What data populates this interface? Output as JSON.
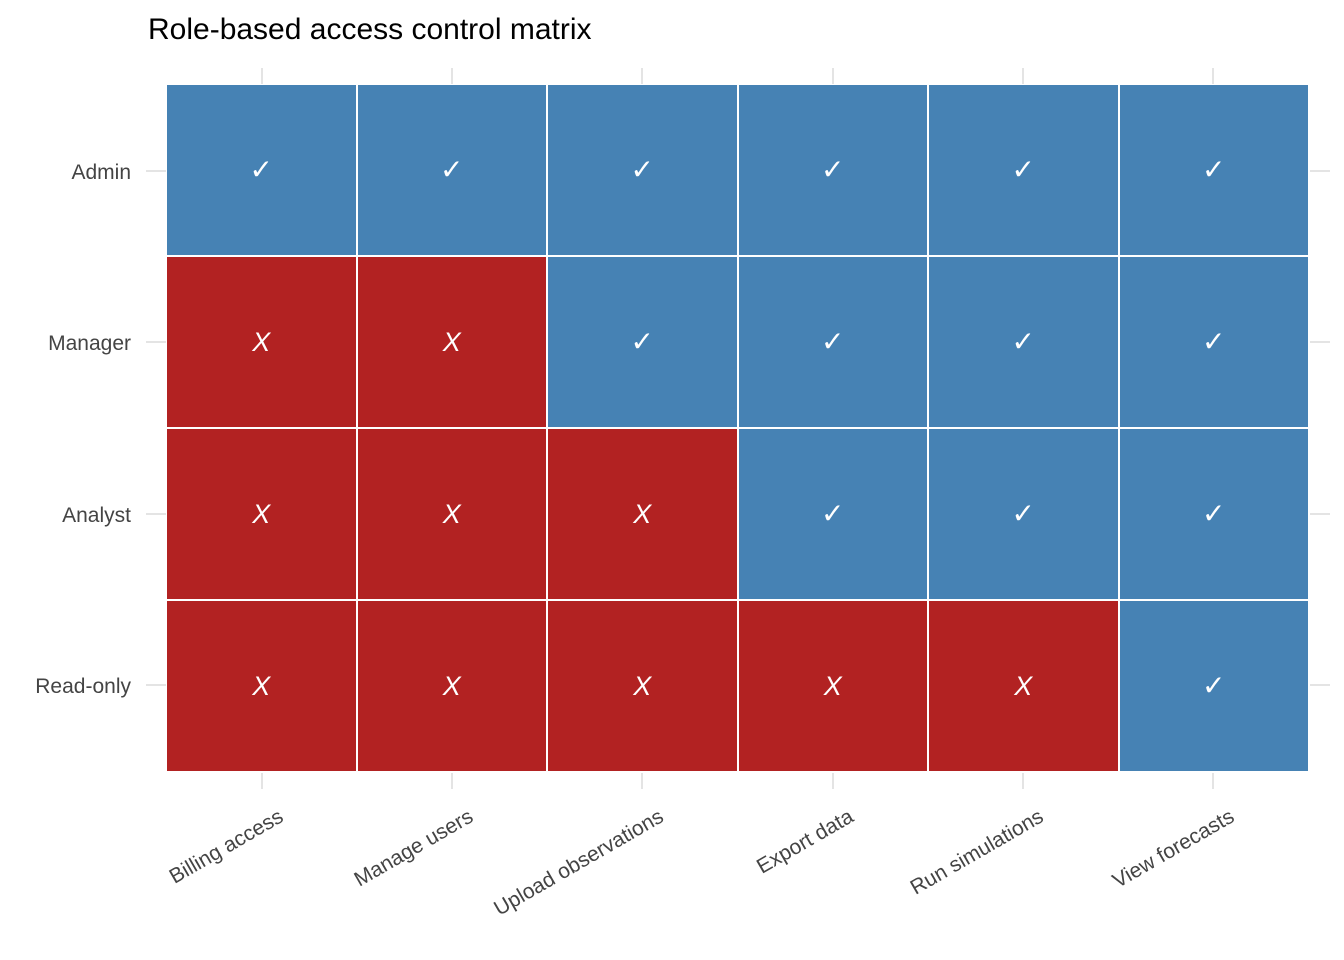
{
  "title": "Role-based access control matrix",
  "colors": {
    "allowed_cell": "#4682B4",
    "denied_cell": "#B22222",
    "cell_border": "#FFFFFF",
    "mark_text": "#FFFFFF",
    "axis_text": "#444444",
    "title_text": "#000000",
    "grid_stub": "#E4E4E4",
    "background": "#FFFFFF"
  },
  "glyphs": {
    "allowed": "✓",
    "denied": "X"
  },
  "chart_data": {
    "type": "heatmap",
    "title": "Role-based access control matrix",
    "rows": [
      "Admin",
      "Manager",
      "Analyst",
      "Read-only"
    ],
    "columns": [
      "Billing access",
      "Manage users",
      "Upload observations",
      "Export data",
      "Run simulations",
      "View forecasts"
    ],
    "values": [
      [
        1,
        1,
        1,
        1,
        1,
        1
      ],
      [
        0,
        0,
        1,
        1,
        1,
        1
      ],
      [
        0,
        0,
        0,
        1,
        1,
        1
      ],
      [
        0,
        0,
        0,
        0,
        0,
        1
      ]
    ],
    "cell_encoding": {
      "1": "allowed — blue cell with ✓",
      "0": "denied — red cell with X"
    },
    "legend": "none",
    "grid": "light gray tick stubs at row and column centers on all four panel edges",
    "x_tick_angle": -30
  }
}
